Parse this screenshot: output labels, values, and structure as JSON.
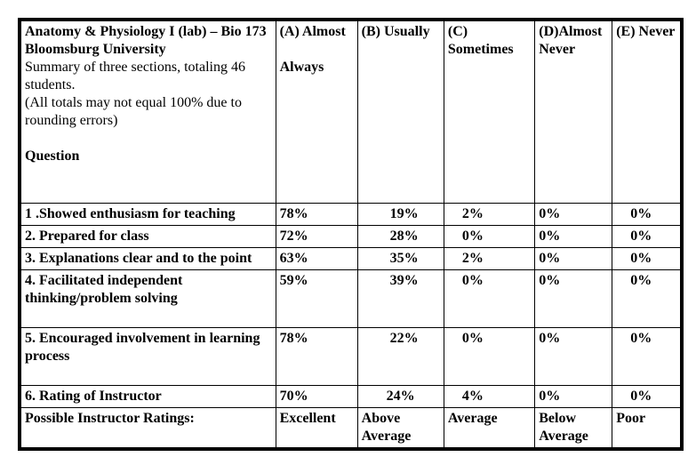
{
  "header": {
    "title_line1": "Anatomy & Physiology I (lab) – Bio 173  Bloomsburg University",
    "title_line2": "Summary of three sections, totaling 46 students.",
    "title_line3": "(All totals may not equal 100% due to rounding errors)",
    "question_label": "Question",
    "col_a": "(A) Almost",
    "col_a2": "Always",
    "col_b": "(B) Usually",
    "col_c": " (C) Sometimes",
    "col_d": "(D)Almost Never",
    "col_e": " (E) Never"
  },
  "rows": {
    "r1": {
      "q": "1 .Showed enthusiasm for teaching",
      "a": "78%",
      "b": "19%",
      "c": "2%",
      "d": "0%",
      "e": "0%"
    },
    "r2": {
      "q": "2. Prepared for class",
      "a": "72%",
      "b": "28%",
      "c": "0%",
      "d": "0%",
      "e": "0%"
    },
    "r3": {
      "q": "3.  Explanations clear and to the point",
      "a": "63%",
      "b": "35%",
      "c": "2%",
      "d": "0%",
      "e": "0%"
    },
    "r4": {
      "q": "4.  Facilitated independent thinking/problem solving",
      "a": "59%",
      "b": "39%",
      "c": "0%",
      "d": "0%",
      "e": "0%"
    },
    "r5": {
      "q": "5.  Encouraged involvement in learning process",
      "a": "78%",
      "b": "22%",
      "c": "0%",
      "d": "0%",
      "e": "0%"
    },
    "r6": {
      "q": "6.  Rating of Instructor",
      "a": "70%",
      "b": "24%",
      "c": "4%",
      "d": "0%",
      "e": "0%"
    }
  },
  "footer": {
    "label": "Possible Instructor Ratings:",
    "a": "Excellent",
    "b": "Above Average",
    "c": "Average",
    "d": "Below Average",
    "e": " Poor"
  }
}
